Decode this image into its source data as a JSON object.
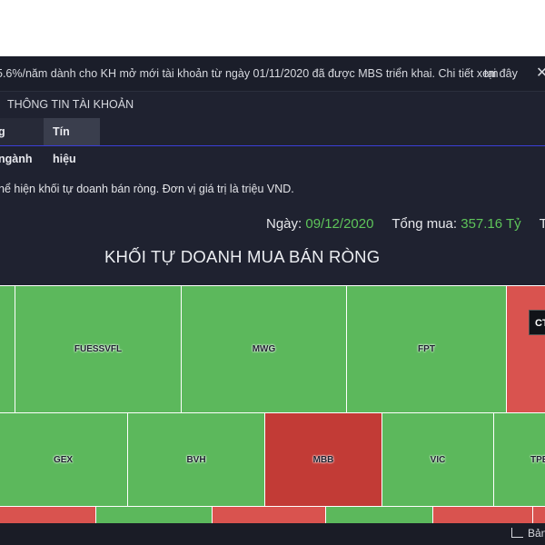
{
  "ticker": {
    "message": "5.6%/năm dành cho KH mở mới tài khoản từ ngày 01/11/2020 đã được MBS triển khai. Chi tiết xem",
    "link": "tại đây",
    "close_icon": "close-icon"
  },
  "account_label": "THÔNG TIN TÀI KHOẢN",
  "tabs": [
    {
      "label": "g ngành"
    },
    {
      "label": "Tín hiệu"
    }
  ],
  "description": "hể hiện khối tự doanh bán ròng. Đơn vị giá trị là triệu VND.",
  "stats": {
    "date_label": "Ngày:",
    "date_value": "09/12/2020",
    "buy_label": "Tổng mua:",
    "buy_value": "357.16 Tỷ",
    "sell_label": "Tổ"
  },
  "chart_title": "KHỐI TỰ DOANH MUA BÁN RÒNG",
  "treemap": {
    "cells": [
      {
        "label": "",
        "color": "#5cb85c"
      },
      {
        "label": "FUESSVFL",
        "color": "#5cb85c"
      },
      {
        "label": "MWG",
        "color": "#5cb85c"
      },
      {
        "label": "FPT",
        "color": "#5cb85c"
      },
      {
        "label": "",
        "color": "#d9534f"
      },
      {
        "label": "GEX",
        "color": "#5cb85c"
      },
      {
        "label": "BVH",
        "color": "#5cb85c"
      },
      {
        "label": "MBB",
        "color": "#c23b36"
      },
      {
        "label": "VIC",
        "color": "#5cb85c"
      },
      {
        "label": "TPE",
        "color": "#5cb85c"
      }
    ],
    "tooltip": "CT"
  },
  "footer": {
    "legend_label": "Bảng",
    "legend_icon": "line-chart-icon"
  }
}
